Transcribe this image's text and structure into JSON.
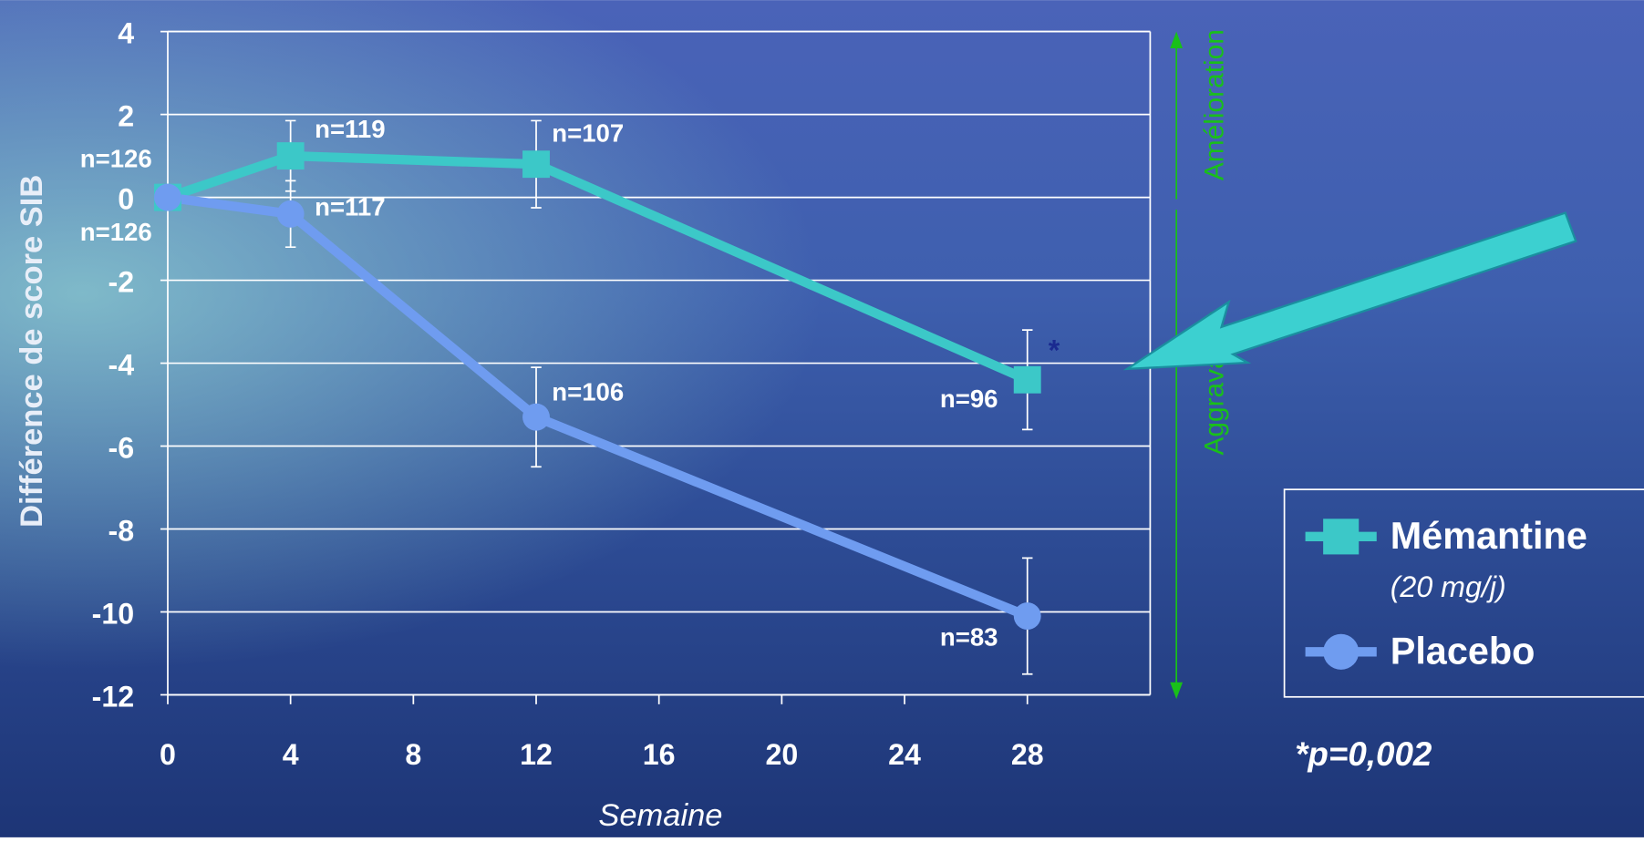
{
  "chart_data": {
    "type": "line",
    "y_label": "Différence de score SIB",
    "x_label": "Semaine",
    "x": [
      0,
      4,
      12,
      28
    ],
    "xlim": [
      0,
      32
    ],
    "xticks": [
      0,
      4,
      8,
      12,
      16,
      20,
      24,
      28
    ],
    "ylim": [
      -12,
      4
    ],
    "yticks": [
      -12,
      -10,
      -8,
      -6,
      -4,
      -2,
      0,
      2,
      4
    ],
    "grid": true,
    "series": [
      {
        "name": "Mémantine",
        "detail": "(20 mg/j)",
        "color": "#3cc8c8",
        "marker": "square",
        "values": [
          0,
          1.0,
          0.8,
          -4.4
        ],
        "errors": [
          null,
          0.85,
          1.05,
          1.2
        ],
        "annotations": [
          "n=126",
          "n=119",
          "n=107",
          "n=96"
        ]
      },
      {
        "name": "Placebo",
        "color": "#6f9cf0",
        "marker": "circle",
        "values": [
          0,
          -0.4,
          -5.3,
          -10.1
        ],
        "errors": [
          null,
          0.8,
          1.2,
          1.4
        ],
        "annotations": [
          "n=126",
          "n=117",
          "n=106",
          "n=83"
        ]
      }
    ],
    "significance_mark": "*",
    "footnote": "*p=0,002",
    "side_up": "Amélioration",
    "side_down": "Aggravation",
    "legend": "right"
  }
}
